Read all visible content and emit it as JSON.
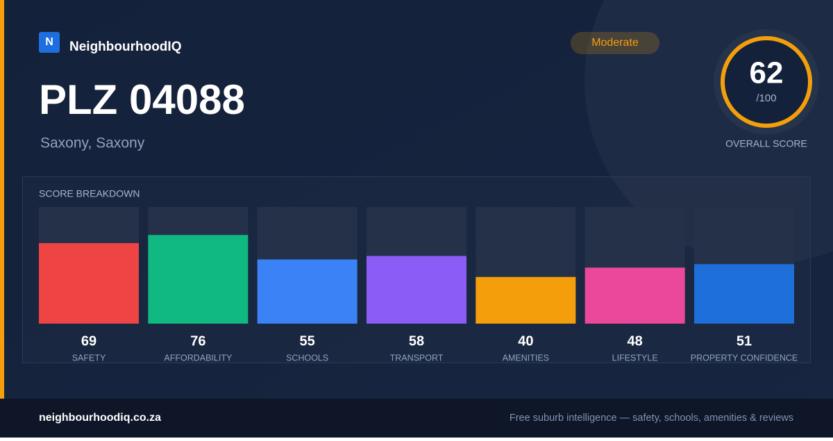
{
  "brand": {
    "logo": "N",
    "name": "NeighbourhoodIQ"
  },
  "header": {
    "title": "PLZ 04088",
    "location": "Saxony, Saxony",
    "badge": "Moderate"
  },
  "overall": {
    "score": "62",
    "out_of": "/100",
    "label": "OVERALL SCORE"
  },
  "chart_data": {
    "type": "bar",
    "title": "SCORE BREAKDOWN",
    "categories": [
      "SAFETY",
      "AFFORDABILITY",
      "SCHOOLS",
      "TRANSPORT",
      "AMENITIES",
      "LIFESTYLE",
      "PROPERTY CONFIDENCE"
    ],
    "values": [
      69,
      76,
      55,
      58,
      40,
      48,
      51
    ],
    "colors": [
      "#ef4444",
      "#10b981",
      "#3b82f6",
      "#8b5cf6",
      "#f59e0b",
      "#ec4899",
      "#1e6fd9"
    ],
    "ylim": [
      0,
      100
    ]
  },
  "footer": {
    "url": "neighbourhoodiq.co.za",
    "tagline": "Free suburb intelligence — safety, schools, amenities & reviews"
  }
}
